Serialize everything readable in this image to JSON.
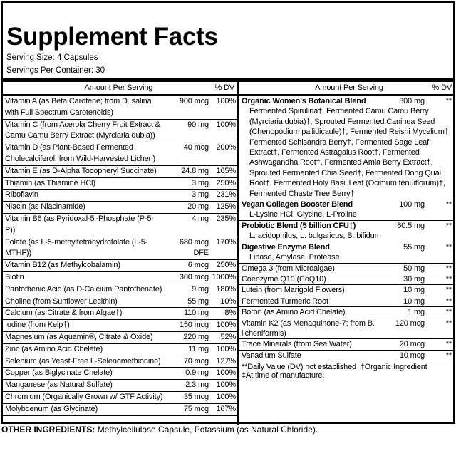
{
  "header": {
    "title": "Supplement Facts",
    "serving_size": "Serving Size: 4 Capsules",
    "servings_per_container": "Servings Per Container: 30"
  },
  "left_table": {
    "column_headers": [
      "Amount Per Serving",
      "% DV"
    ],
    "rows": [
      [
        "Vitamin A (as Beta Carotene; from D. salina with Full Spectrum Carotenoids)",
        "900 mcg",
        "100%"
      ],
      [
        "Vitamin C (from Acerola Cherry Fruit Extract & Camu Camu Berry Extract (Myrciaria dubia))",
        "90 mg",
        "100%"
      ],
      [
        "Vitamin D (as Plant-Based Fermented Cholecalciferol; from Wild-Harvested Lichen)",
        "40 mcg",
        "200%"
      ],
      [
        "Vitamin E (as D-Alpha Tocopheryl Succinate)",
        "24.8 mg",
        "165%"
      ],
      [
        "Thiamin (as Thiamine HCl)",
        "3 mg",
        "250%"
      ],
      [
        "Riboflavin",
        "3 mg",
        "231%"
      ],
      [
        "Niacin (as Niacinamide)",
        "20 mg",
        "125%"
      ],
      [
        "Vitamin B6 (as Pyridoxal-5'-Phosphate (P-5-P))",
        "4 mg",
        "235%"
      ],
      [
        "Folate (as L-5-methyltetrahydrofolate (L-5-MTHF))",
        "680 mcg DFE",
        "170%"
      ],
      [
        "Vitamin B12 (as Methylcobalamin)",
        "6 mcg",
        "250%"
      ],
      [
        "Biotin",
        "300 mcg",
        "1000%"
      ],
      [
        "Pantothenic Acid (as D-Calcium Pantothenate)",
        "9 mg",
        "180%"
      ],
      [
        "Choline (from Sunflower Lecithin)",
        "55 mg",
        "10%"
      ],
      [
        "Calcium (as Citrate & from Algae†)",
        "110 mg",
        "8%"
      ],
      [
        "Iodine (from Kelp†)",
        "150 mcg",
        "100%"
      ],
      [
        "Magnesium (as Aquamin®, Citrate & Oxide)",
        "220 mg",
        "52%"
      ],
      [
        "Zinc (as Amino Acid Chelate)",
        "11 mg",
        "100%"
      ],
      [
        "Selenium (as Yeast-Free L-Selenomethionine)",
        "70 mcg",
        "127%"
      ],
      [
        "Copper (as Biglycinate Chelate)",
        "0.9 mg",
        "100%"
      ],
      [
        "Manganese (as Natural Sulfate)",
        "2.3 mg",
        "100%"
      ],
      [
        "Chromium (Organically Grown w/ GTF Activity)",
        "35 mcg",
        "100%"
      ],
      [
        "Molybdenum (as Glycinate)",
        "75 mcg",
        "167%"
      ]
    ]
  },
  "right_table": {
    "column_headers": [
      "Amount Per Serving",
      "% DV"
    ],
    "rows": [
      {
        "name": "Organic Women's Botanical Blend",
        "amount": "800 mg",
        "dv": "**",
        "detail": "Fermented Spirulina†, Fermented Camu Camu Berry (Myrciaria dubia)†, Sprouted Fermented Canihua Seed (Chenopodium pallidicaule)†, Fermented Reishi Mycelium†, Fermented Schisandra Berry†, Fermented Sage Leaf Extract†, Fermented Astragalus Root†, Fermented Ashwagandha Root†, Fermented Amla Berry Extract†, Sprouted Fermented Chia Seed†, Fermented Dong Quai Root†, Fermented Holy Basil Leaf (Ocimum tenuiflorum)†, Fermented Chaste Tree Berry†"
      },
      {
        "name": "Vegan Collagen Booster Blend",
        "amount": "100 mg",
        "dv": "**",
        "detail": "L-Lysine HCl, Glycine, L-Proline"
      },
      {
        "name": "Probiotic Blend (5 billion CFU‡)",
        "amount": "60.5 mg",
        "dv": "**",
        "detail": "L. acidophilus, L. bulgaricus, B. bifidum"
      },
      {
        "name": "Digestive Enzyme Blend",
        "amount": "55 mg",
        "dv": "**",
        "detail": "Lipase, Amylase, Protease"
      },
      {
        "name": "Omega 3 (from Microalgae)",
        "amount": "50 mg",
        "dv": "**"
      },
      {
        "name": "Coenzyme Q10 (CoQ10)",
        "amount": "30 mg",
        "dv": "**"
      },
      {
        "name": "Lutein (from Marigold Flowers)",
        "amount": "10 mg",
        "dv": "**"
      },
      {
        "name": "Fermented Turmeric Root",
        "amount": "10 mg",
        "dv": "**"
      },
      {
        "name": "Boron (as Amino Acid Chelate)",
        "amount": "1 mg",
        "dv": "**"
      },
      {
        "name": "Vitamin K2 (as Menaquinone-7; from B. licheniformis)",
        "amount": "120 mcg",
        "dv": "**"
      },
      {
        "name": "Trace Minerals (from Sea Water)",
        "amount": "20 mcg",
        "dv": "**"
      },
      {
        "name": "Vanadium Sulfate",
        "amount": "10 mcg",
        "dv": "**"
      }
    ],
    "footnotes": [
      "**Daily Value (DV) not established  †Organic Ingredient",
      "‡At time of manufacture."
    ]
  },
  "other_ingredients": {
    "label": "OTHER INGREDIENTS:",
    "text": "Methylcellulose Capsule, Potassium (as Natural Chloride)."
  }
}
